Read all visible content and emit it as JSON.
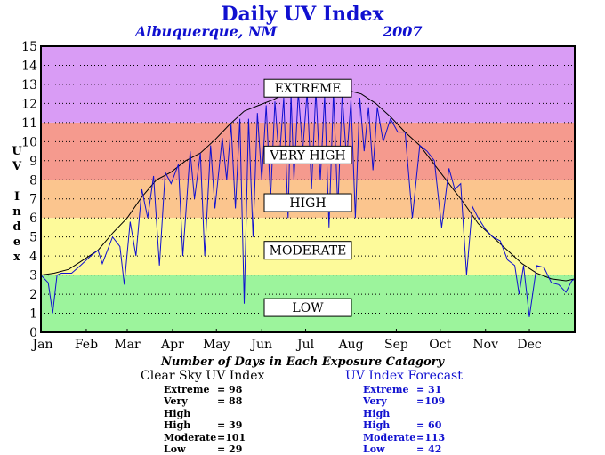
{
  "header": {
    "title": "Daily UV Index",
    "location": "Albuquerque, NM",
    "year": "2007"
  },
  "y_axis_letters": [
    "U",
    "V",
    "",
    "I",
    "n",
    "d",
    "e",
    "x"
  ],
  "counts_caption": "Number of Days in Each Exposure Catagory",
  "clear_sky": {
    "heading": "Clear Sky UV Index",
    "rows": [
      {
        "label": "Extreme",
        "value": "= 98"
      },
      {
        "label": "Very High",
        "value": "= 88"
      },
      {
        "label": "High",
        "value": "= 39"
      },
      {
        "label": "Moderate",
        "value": "=101"
      },
      {
        "label": "Low",
        "value": "= 29"
      }
    ]
  },
  "forecast": {
    "heading": "UV Index Forecast",
    "rows": [
      {
        "label": "Extreme",
        "value": "= 31"
      },
      {
        "label": "Very High",
        "value": "=109"
      },
      {
        "label": "High",
        "value": "= 60"
      },
      {
        "label": "Moderate",
        "value": "=113"
      },
      {
        "label": "Low",
        "value": "= 42"
      }
    ]
  },
  "colors": {
    "extreme": "#d99cf5",
    "very_high": "#f59a8e",
    "high": "#fbc58e",
    "moderate": "#fdfa9a",
    "low": "#9cf49c",
    "clear_sky_line": "#000000",
    "forecast_line": "#1010d0",
    "title": "#1010d0"
  },
  "chart_data": {
    "type": "line",
    "ylim": [
      0,
      15
    ],
    "yticks": [
      0,
      1,
      2,
      3,
      4,
      5,
      6,
      7,
      8,
      9,
      10,
      11,
      12,
      13,
      14,
      15
    ],
    "x_tick_labels": [
      "Jan",
      "Feb",
      "Mar",
      "Apr",
      "May",
      "Jun",
      "Jul",
      "Aug",
      "Sep",
      "Oct",
      "Nov",
      "Dec"
    ],
    "xlim_day": [
      1,
      366
    ],
    "bands": [
      {
        "name": "LOW",
        "from": 0,
        "to": 3,
        "color": "#9cf49c",
        "label_y": 1.3
      },
      {
        "name": "MODERATE",
        "from": 3,
        "to": 6,
        "color": "#fdfa9a",
        "label_y": 4.3
      },
      {
        "name": "HIGH",
        "from": 6,
        "to": 8,
        "color": "#fbc58e",
        "label_y": 6.8
      },
      {
        "name": "VERY HIGH",
        "from": 8,
        "to": 11,
        "color": "#f59a8e",
        "label_y": 9.3
      },
      {
        "name": "EXTREME",
        "from": 11,
        "to": 15,
        "color": "#d99cf5",
        "label_y": 12.8
      }
    ],
    "series": [
      {
        "name": "Clear Sky UV Index",
        "color": "#000000",
        "x": [
          1,
          10,
          20,
          30,
          40,
          50,
          60,
          70,
          80,
          90,
          100,
          110,
          120,
          130,
          140,
          150,
          160,
          170,
          180,
          190,
          200,
          210,
          220,
          230,
          240,
          250,
          260,
          270,
          280,
          290,
          300,
          310,
          320,
          330,
          340,
          350,
          360,
          366
        ],
        "values": [
          3.0,
          3.1,
          3.3,
          3.8,
          4.3,
          5.2,
          6.0,
          7.1,
          8.0,
          8.4,
          9.0,
          9.4,
          10.1,
          10.9,
          11.6,
          11.9,
          12.2,
          12.6,
          12.7,
          12.8,
          12.7,
          12.7,
          12.5,
          12.0,
          11.3,
          10.5,
          9.8,
          8.8,
          7.8,
          6.8,
          5.7,
          5.0,
          4.3,
          3.6,
          3.1,
          2.8,
          2.7,
          2.8
        ]
      },
      {
        "name": "UV Index Forecast",
        "color": "#1010d0",
        "x": [
          1,
          6,
          9,
          12,
          15,
          22,
          28,
          35,
          40,
          43,
          50,
          55,
          58,
          62,
          66,
          70,
          74,
          78,
          82,
          86,
          90,
          95,
          98,
          103,
          106,
          110,
          113,
          117,
          120,
          125,
          128,
          131,
          134,
          137,
          140,
          143,
          146,
          149,
          152,
          155,
          158,
          161,
          164,
          167,
          170,
          172,
          174,
          177,
          180,
          183,
          186,
          189,
          192,
          195,
          198,
          201,
          204,
          207,
          210,
          213,
          216,
          219,
          222,
          225,
          228,
          231,
          235,
          240,
          245,
          250,
          255,
          260,
          265,
          270,
          275,
          280,
          284,
          288,
          292,
          296,
          300,
          305,
          310,
          315,
          320,
          325,
          328,
          331,
          335,
          340,
          345,
          350,
          355,
          360,
          364,
          366
        ],
        "values": [
          3.0,
          2.6,
          1.0,
          3.0,
          3.1,
          3.1,
          3.5,
          4.0,
          4.3,
          3.6,
          5.0,
          4.5,
          2.5,
          5.8,
          4.0,
          7.5,
          6.0,
          8.2,
          3.5,
          8.4,
          7.8,
          8.8,
          4.0,
          9.5,
          7.0,
          9.4,
          4.0,
          9.8,
          6.5,
          10.2,
          8.0,
          10.9,
          6.5,
          11.2,
          1.5,
          11.2,
          5.0,
          11.5,
          8.0,
          11.9,
          7.0,
          12.1,
          9.0,
          12.3,
          6.0,
          12.5,
          8.0,
          12.6,
          9.5,
          12.6,
          7.5,
          12.7,
          8.0,
          12.4,
          5.5,
          12.6,
          6.5,
          12.5,
          9.0,
          12.2,
          6.0,
          12.3,
          9.5,
          11.8,
          8.5,
          11.8,
          10.0,
          11.2,
          10.5,
          10.5,
          6.0,
          9.8,
          9.5,
          9.0,
          5.5,
          8.6,
          7.5,
          7.8,
          3.0,
          6.6,
          6.0,
          5.4,
          5.0,
          4.8,
          3.8,
          3.5,
          2.0,
          3.5,
          0.8,
          3.5,
          3.4,
          2.6,
          2.5,
          2.1,
          2.7,
          2.8
        ]
      }
    ]
  }
}
